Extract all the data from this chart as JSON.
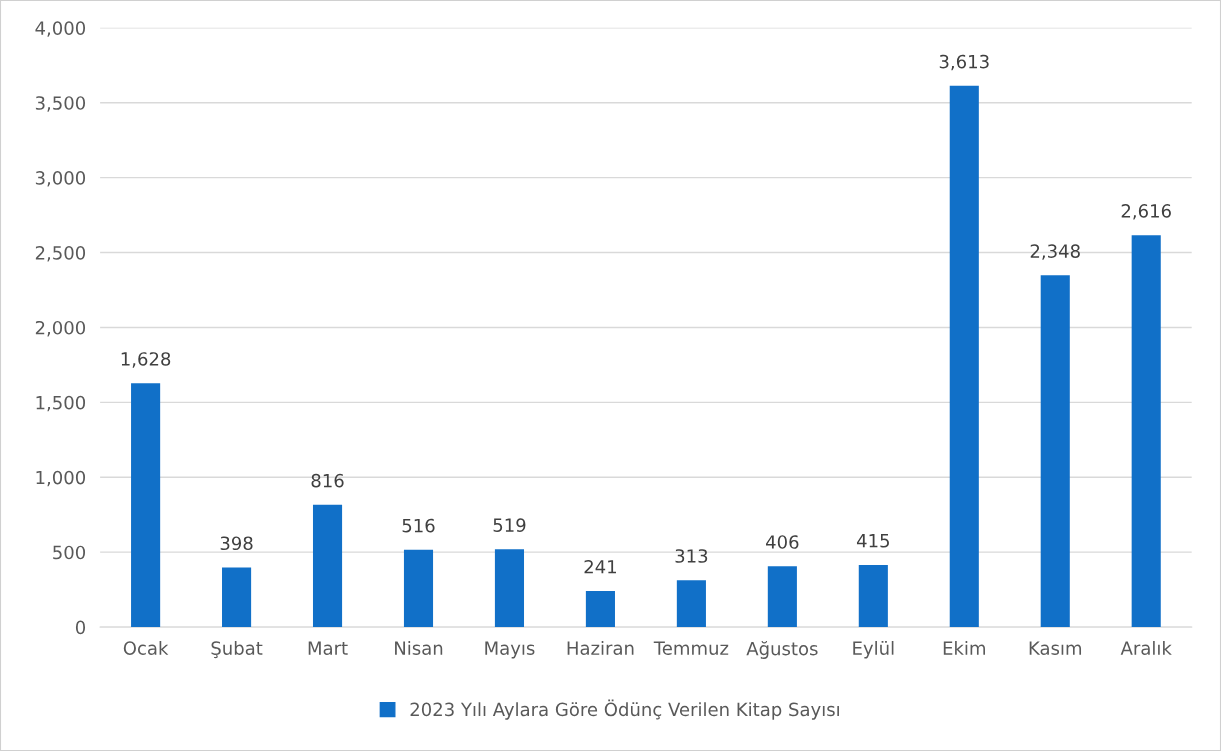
{
  "chart_data": {
    "type": "bar",
    "categories": [
      "Ocak",
      "Şubat",
      "Mart",
      "Nisan",
      "Mayıs",
      "Haziran",
      "Temmuz",
      "Ağustos",
      "Eylül",
      "Ekim",
      "Kasım",
      "Aralık"
    ],
    "series": [
      {
        "name": "2023 Yılı Aylara Göre Ödünç Verilen Kitap Sayısı",
        "color": "#1170c8",
        "values": [
          1628,
          398,
          816,
          516,
          519,
          241,
          313,
          406,
          415,
          3613,
          2348,
          2616
        ]
      }
    ],
    "value_labels": [
      "1,628",
      "398",
      "816",
      "516",
      "519",
      "241",
      "313",
      "406",
      "415",
      "3,613",
      "2,348",
      "2,616"
    ],
    "ylim": [
      0,
      4000
    ],
    "yticks": [
      0,
      {
        "value": 500,
        "label": "500"
      },
      {
        "value": 1000,
        "label": "1,000"
      },
      {
        "value": 1500,
        "label": "1,500"
      },
      {
        "value": 2000,
        "label": "2,000"
      },
      {
        "value": 2500,
        "label": "2,500"
      },
      {
        "value": 3000,
        "label": "3,000"
      },
      {
        "value": 3500,
        "label": "3,500"
      },
      {
        "value": 4000,
        "label": "4,000"
      }
    ],
    "grid": "y",
    "legend": "bottom"
  }
}
